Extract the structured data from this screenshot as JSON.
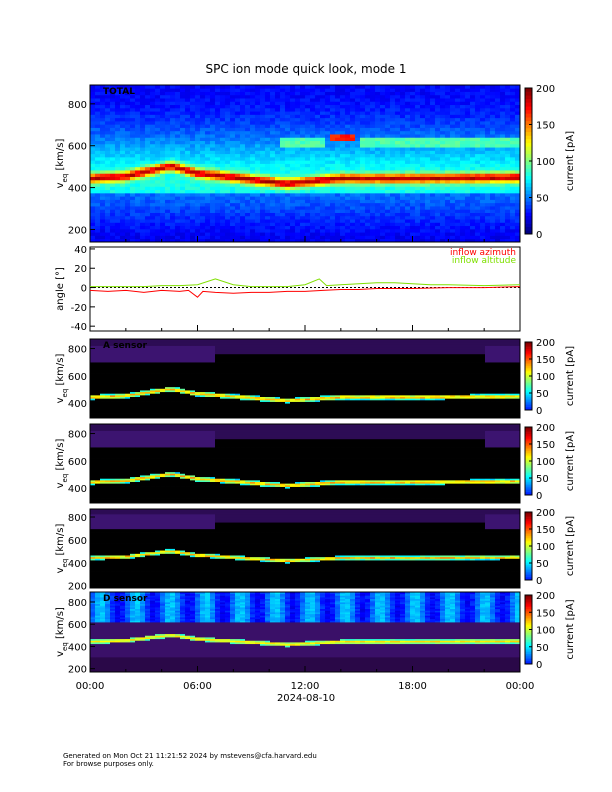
{
  "page": {
    "title": "SPC ion mode quick look, mode 1",
    "footer_line1": "Generated on Mon Oct 21 11:21:52 2024 by mstevens@cfa.harvard.edu",
    "footer_line2": "For browse purposes only."
  },
  "chart_data": {
    "type": "heatmap",
    "title": "SPC ion mode quick look, mode 1",
    "xlabel": "2024-08-10",
    "x_ticks": [
      "00:00",
      "06:00",
      "12:00",
      "18:00",
      "00:00"
    ],
    "x_range_hours": [
      0,
      24
    ],
    "colorbar": {
      "label": "current [pA]",
      "ticks": [
        0,
        50,
        100,
        150,
        200
      ],
      "range": [
        0,
        200
      ]
    },
    "panels": [
      {
        "id": "total",
        "label": "TOTAL",
        "type": "heatmap",
        "ylabel": "v_eq [km/s]",
        "ylim": [
          140,
          890
        ],
        "y_ticks": [
          200,
          400,
          600,
          800
        ],
        "background": "jet",
        "description_of_features": "broad band peaking near 430-470 km/s; secondary beam near 600-650 km/s",
        "beam_center_kms": [
          {
            "hour": 0,
            "v": 445
          },
          {
            "hour": 2,
            "v": 455
          },
          {
            "hour": 4.5,
            "v": 505
          },
          {
            "hour": 6,
            "v": 470
          },
          {
            "hour": 8,
            "v": 450
          },
          {
            "hour": 10,
            "v": 430
          },
          {
            "hour": 11,
            "v": 420
          },
          {
            "hour": 14,
            "v": 445
          },
          {
            "hour": 18,
            "v": 445
          },
          {
            "hour": 24,
            "v": 450
          }
        ]
      },
      {
        "id": "angle",
        "type": "line",
        "ylabel": "angle [°]",
        "ylim": [
          -45,
          42
        ],
        "y_ticks": [
          -40,
          -20,
          0,
          20,
          40
        ],
        "series": [
          {
            "name": "inflow azimuth",
            "color": "#ff0000",
            "points": [
              [
                0,
                -3
              ],
              [
                1,
                -4
              ],
              [
                2,
                -3
              ],
              [
                3,
                -5
              ],
              [
                4,
                -3
              ],
              [
                5,
                -4
              ],
              [
                5.5,
                -3
              ],
              [
                6,
                -10
              ],
              [
                6.3,
                -4
              ],
              [
                7,
                -5
              ],
              [
                8,
                -6
              ],
              [
                9,
                -5
              ],
              [
                10,
                -5
              ],
              [
                11,
                -4
              ],
              [
                12,
                -4
              ],
              [
                13,
                -3
              ],
              [
                14,
                -2
              ],
              [
                15,
                -2
              ],
              [
                16,
                -1
              ],
              [
                18,
                -1
              ],
              [
                20,
                0
              ],
              [
                22,
                0
              ],
              [
                24,
                1
              ]
            ]
          },
          {
            "name": "inflow altitude",
            "color": "#7fe000",
            "points": [
              [
                0,
                1
              ],
              [
                1,
                1
              ],
              [
                2,
                1
              ],
              [
                3,
                1
              ],
              [
                4,
                2
              ],
              [
                5,
                2
              ],
              [
                6,
                3
              ],
              [
                7,
                9
              ],
              [
                8,
                3
              ],
              [
                9,
                1
              ],
              [
                10,
                1
              ],
              [
                11,
                1
              ],
              [
                12,
                3
              ],
              [
                12.8,
                9
              ],
              [
                13.2,
                2
              ],
              [
                14,
                3
              ],
              [
                15,
                4
              ],
              [
                16,
                5
              ],
              [
                17,
                5
              ],
              [
                18,
                4
              ],
              [
                19,
                3
              ],
              [
                20,
                3
              ],
              [
                22,
                2
              ],
              [
                24,
                3
              ]
            ]
          }
        ]
      },
      {
        "id": "A",
        "label": "A sensor",
        "type": "heatmap",
        "ylabel": "v_eq [km/s]",
        "ylim": [
          290,
          870
        ],
        "y_ticks": [
          400,
          600,
          800
        ],
        "background": "dark"
      },
      {
        "id": "B",
        "label": "",
        "type": "heatmap",
        "ylabel": "v_eq [km/s]",
        "ylim": [
          290,
          870
        ],
        "y_ticks": [
          400,
          600,
          800
        ],
        "background": "dark"
      },
      {
        "id": "C",
        "label": "",
        "type": "heatmap",
        "ylabel": "v_eq [km/s]",
        "ylim": [
          180,
          870
        ],
        "y_ticks": [
          200,
          400,
          600,
          800
        ],
        "background": "dark"
      },
      {
        "id": "D",
        "label": "D sensor",
        "type": "heatmap",
        "ylabel": "v_eq [km/s]",
        "ylim": [
          170,
          890
        ],
        "y_ticks": [
          200,
          400,
          600,
          800
        ],
        "background": "jet-upper"
      }
    ]
  }
}
